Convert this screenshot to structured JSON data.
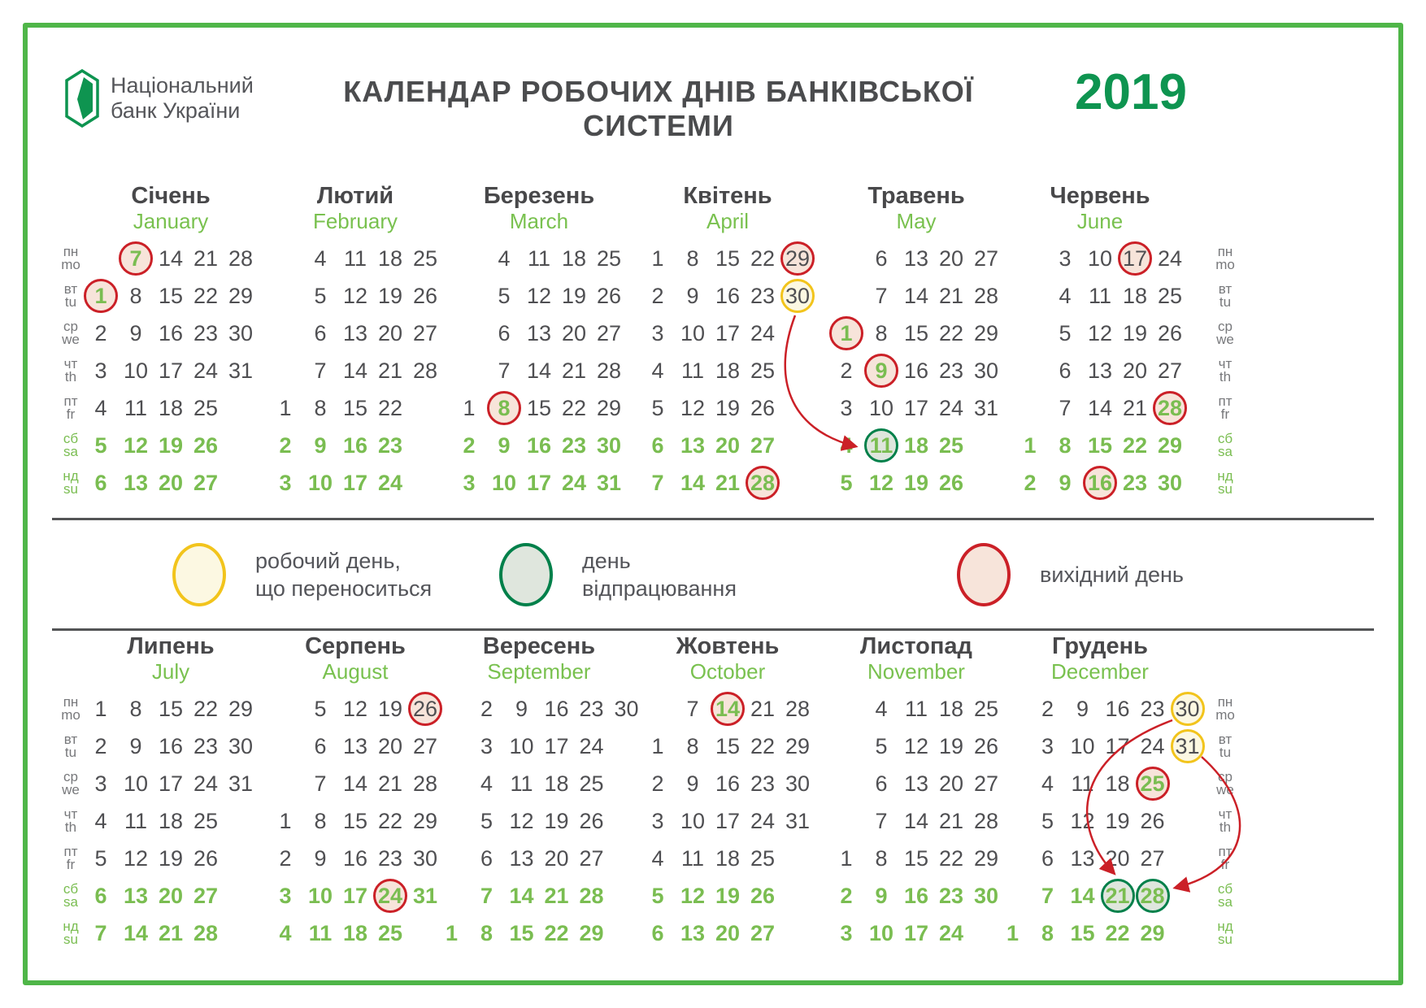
{
  "header": {
    "bank_line1": "Національний",
    "bank_line2": "банк України",
    "title": "КАЛЕНДАР РОБОЧИХ ДНІВ БАНКІВСЬКОЇ СИСТЕМИ",
    "year": "2019"
  },
  "colors": {
    "brand_green": "#0E9450",
    "frame_green": "#4FB648",
    "light_green": "#79C14F",
    "text_gray": "#4F4F52",
    "dayoff_border": "#CB2027",
    "dayoff_fill": "#F7E4DA",
    "moved_border": "#F2C41C",
    "moved_fill": "#FCF8E2",
    "workoff_border": "#00804A",
    "workoff_fill": "#DFE6DD",
    "arrow_red": "#CB2027"
  },
  "weekdays": [
    {
      "uk": "пн",
      "en": "mo",
      "weekend": false
    },
    {
      "uk": "вт",
      "en": "tu",
      "weekend": false
    },
    {
      "uk": "ср",
      "en": "we",
      "weekend": false
    },
    {
      "uk": "чт",
      "en": "th",
      "weekend": false
    },
    {
      "uk": "пт",
      "en": "fr",
      "weekend": false
    },
    {
      "uk": "сб",
      "en": "sa",
      "weekend": true
    },
    {
      "uk": "нд",
      "en": "su",
      "weekend": true
    }
  ],
  "legend": {
    "items": [
      {
        "type": "moved",
        "line1": "робочий день,",
        "line2": "що переноситься"
      },
      {
        "type": "workoff",
        "line1": "день",
        "line2": "відпрацювання"
      },
      {
        "type": "dayoff",
        "line1": "вихідний день",
        "line2": ""
      }
    ]
  },
  "calendar": {
    "top_months": [
      {
        "name_uk": "Січень",
        "name_en": "January",
        "cols": 5,
        "rows": [
          [
            "",
            {
              "d": "7",
              "m": "dayoff",
              "hl": true
            },
            "14",
            "21",
            "28"
          ],
          [
            {
              "d": "1",
              "m": "dayoff",
              "hl": true
            },
            "8",
            "15",
            "22",
            "29"
          ],
          [
            "2",
            "9",
            "16",
            "23",
            "30"
          ],
          [
            "3",
            "10",
            "17",
            "24",
            "31"
          ],
          [
            "4",
            "11",
            "18",
            "25",
            ""
          ],
          [
            "5",
            "12",
            "19",
            "26",
            ""
          ],
          [
            "6",
            "13",
            "20",
            "27",
            ""
          ]
        ]
      },
      {
        "name_uk": "Лютий",
        "name_en": "February",
        "cols": 5,
        "rows": [
          [
            "",
            "4",
            "11",
            "18",
            "25"
          ],
          [
            "",
            "5",
            "12",
            "19",
            "26"
          ],
          [
            "",
            "6",
            "13",
            "20",
            "27"
          ],
          [
            "",
            "7",
            "14",
            "21",
            "28"
          ],
          [
            "1",
            "8",
            "15",
            "22",
            ""
          ],
          [
            "2",
            "9",
            "16",
            "23",
            ""
          ],
          [
            "3",
            "10",
            "17",
            "24",
            ""
          ]
        ]
      },
      {
        "name_uk": "Березень",
        "name_en": "March",
        "cols": 5,
        "rows": [
          [
            "",
            "4",
            "11",
            "18",
            "25"
          ],
          [
            "",
            "5",
            "12",
            "19",
            "26"
          ],
          [
            "",
            "6",
            "13",
            "20",
            "27"
          ],
          [
            "",
            "7",
            "14",
            "21",
            "28"
          ],
          [
            "1",
            {
              "d": "8",
              "m": "dayoff",
              "hl": true
            },
            "15",
            "22",
            "29"
          ],
          [
            "2",
            "9",
            "16",
            "23",
            "30"
          ],
          [
            "3",
            "10",
            "17",
            "24",
            "31"
          ]
        ]
      },
      {
        "name_uk": "Квітень",
        "name_en": "April",
        "cols": 5,
        "rows": [
          [
            "1",
            "8",
            "15",
            "22",
            {
              "d": "29",
              "m": "dayoff"
            }
          ],
          [
            "2",
            "9",
            "16",
            "23",
            {
              "d": "30",
              "m": "moved"
            }
          ],
          [
            "3",
            "10",
            "17",
            "24",
            ""
          ],
          [
            "4",
            "11",
            "18",
            "25",
            ""
          ],
          [
            "5",
            "12",
            "19",
            "26",
            ""
          ],
          [
            "6",
            "13",
            "20",
            "27",
            ""
          ],
          [
            "7",
            "14",
            "21",
            {
              "d": "28",
              "m": "dayoff"
            },
            ""
          ]
        ]
      },
      {
        "name_uk": "Травень",
        "name_en": "May",
        "cols": 5,
        "rows": [
          [
            "",
            "6",
            "13",
            "20",
            "27"
          ],
          [
            "",
            "7",
            "14",
            "21",
            "28"
          ],
          [
            {
              "d": "1",
              "m": "dayoff",
              "hl": true
            },
            "8",
            "15",
            "22",
            "29"
          ],
          [
            "2",
            {
              "d": "9",
              "m": "dayoff",
              "hl": true
            },
            "16",
            "23",
            "30"
          ],
          [
            "3",
            "10",
            "17",
            "24",
            "31"
          ],
          [
            "4",
            {
              "d": "11",
              "m": "workoff"
            },
            "18",
            "25",
            ""
          ],
          [
            "5",
            "12",
            "19",
            "26",
            ""
          ]
        ]
      },
      {
        "name_uk": "Червень",
        "name_en": "June",
        "cols": 5,
        "rows": [
          [
            "",
            "3",
            "10",
            {
              "d": "17",
              "m": "dayoff"
            },
            "24"
          ],
          [
            "",
            "4",
            "11",
            "18",
            "25"
          ],
          [
            "",
            "5",
            "12",
            "19",
            "26"
          ],
          [
            "",
            "6",
            "13",
            "20",
            "27"
          ],
          [
            "",
            "7",
            "14",
            "21",
            {
              "d": "28",
              "m": "dayoff",
              "hl": true
            }
          ],
          [
            "1",
            "8",
            "15",
            "22",
            "29"
          ],
          [
            "2",
            "9",
            {
              "d": "16",
              "m": "dayoff"
            },
            "23",
            "30"
          ]
        ]
      }
    ],
    "bottom_months": [
      {
        "name_uk": "Липень",
        "name_en": "July",
        "cols": 5,
        "rows": [
          [
            "1",
            "8",
            "15",
            "22",
            "29"
          ],
          [
            "2",
            "9",
            "16",
            "23",
            "30"
          ],
          [
            "3",
            "10",
            "17",
            "24",
            "31"
          ],
          [
            "4",
            "11",
            "18",
            "25",
            ""
          ],
          [
            "5",
            "12",
            "19",
            "26",
            ""
          ],
          [
            "6",
            "13",
            "20",
            "27",
            ""
          ],
          [
            "7",
            "14",
            "21",
            "28",
            ""
          ]
        ]
      },
      {
        "name_uk": "Серпень",
        "name_en": "August",
        "cols": 5,
        "rows": [
          [
            "",
            "5",
            "12",
            "19",
            {
              "d": "26",
              "m": "dayoff"
            }
          ],
          [
            "",
            "6",
            "13",
            "20",
            "27"
          ],
          [
            "",
            "7",
            "14",
            "21",
            "28"
          ],
          [
            "1",
            "8",
            "15",
            "22",
            "29"
          ],
          [
            "2",
            "9",
            "16",
            "23",
            "30"
          ],
          [
            "3",
            "10",
            "17",
            {
              "d": "24",
              "m": "dayoff"
            },
            "31"
          ],
          [
            "4",
            "11",
            "18",
            "25",
            ""
          ]
        ]
      },
      {
        "name_uk": "Вересень",
        "name_en": "September",
        "cols": 6,
        "rows": [
          [
            "",
            "2",
            "9",
            "16",
            "23",
            "30"
          ],
          [
            "",
            "3",
            "10",
            "17",
            "24",
            ""
          ],
          [
            "",
            "4",
            "11",
            "18",
            "25",
            ""
          ],
          [
            "",
            "5",
            "12",
            "19",
            "26",
            ""
          ],
          [
            "",
            "6",
            "13",
            "20",
            "27",
            ""
          ],
          [
            "",
            "7",
            "14",
            "21",
            "28",
            ""
          ],
          [
            "1",
            "8",
            "15",
            "22",
            "29",
            ""
          ]
        ]
      },
      {
        "name_uk": "Жовтень",
        "name_en": "October",
        "cols": 5,
        "rows": [
          [
            "",
            "7",
            {
              "d": "14",
              "m": "dayoff",
              "hl": true
            },
            "21",
            "28"
          ],
          [
            "1",
            "8",
            "15",
            "22",
            "29"
          ],
          [
            "2",
            "9",
            "16",
            "23",
            "30"
          ],
          [
            "3",
            "10",
            "17",
            "24",
            "31"
          ],
          [
            "4",
            "11",
            "18",
            "25",
            ""
          ],
          [
            "5",
            "12",
            "19",
            "26",
            ""
          ],
          [
            "6",
            "13",
            "20",
            "27",
            ""
          ]
        ]
      },
      {
        "name_uk": "Листопад",
        "name_en": "November",
        "cols": 5,
        "rows": [
          [
            "",
            "4",
            "11",
            "18",
            "25"
          ],
          [
            "",
            "5",
            "12",
            "19",
            "26"
          ],
          [
            "",
            "6",
            "13",
            "20",
            "27"
          ],
          [
            "",
            "7",
            "14",
            "21",
            "28"
          ],
          [
            "1",
            "8",
            "15",
            "22",
            "29"
          ],
          [
            "2",
            "9",
            "16",
            "23",
            "30"
          ],
          [
            "3",
            "10",
            "17",
            "24",
            ""
          ]
        ]
      },
      {
        "name_uk": "Грудень",
        "name_en": "December",
        "cols": 6,
        "rows": [
          [
            "",
            "2",
            "9",
            "16",
            "23",
            {
              "d": "30",
              "m": "moved"
            }
          ],
          [
            "",
            "3",
            "10",
            "17",
            "24",
            {
              "d": "31",
              "m": "moved"
            }
          ],
          [
            "",
            "4",
            "11",
            "18",
            {
              "d": "25",
              "m": "dayoff",
              "hl": true
            },
            ""
          ],
          [
            "",
            "5",
            "12",
            "19",
            "26",
            ""
          ],
          [
            "",
            "6",
            "13",
            "20",
            "27",
            ""
          ],
          [
            "",
            "7",
            "14",
            {
              "d": "21",
              "m": "workoff"
            },
            {
              "d": "28",
              "m": "workoff"
            },
            ""
          ],
          [
            "1",
            "8",
            "15",
            "22",
            "29",
            ""
          ]
        ]
      }
    ]
  }
}
